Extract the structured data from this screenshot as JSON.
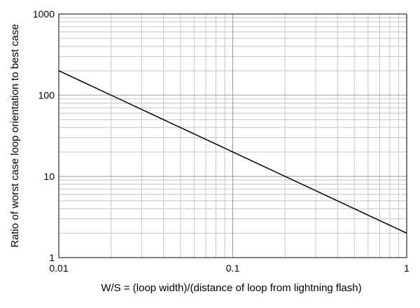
{
  "chart_data": {
    "type": "line",
    "title": "",
    "xlabel": "W/S = (loop width)/(distance of loop from lightning flash)",
    "ylabel": "Ratio of worst case loop orientation to best case",
    "xscale": "log",
    "yscale": "log",
    "xlim": [
      0.01,
      1
    ],
    "ylim": [
      1,
      1000
    ],
    "xticks": [
      0.01,
      0.1,
      1
    ],
    "xtick_labels": [
      "0.01",
      "0.1",
      "1"
    ],
    "yticks": [
      1,
      10,
      100,
      1000
    ],
    "ytick_labels": [
      "1",
      "10",
      "100",
      "1000"
    ],
    "grid": true,
    "legend": "none",
    "colors": {
      "line": "#000000",
      "grid_major": "#9a9a9a",
      "grid_minor": "#c4c4c4",
      "axes": "#000000"
    },
    "series": [
      {
        "x": [
          0.01,
          0.02,
          0.05,
          0.1,
          0.2,
          0.5,
          1
        ],
        "values": [
          200,
          100,
          40,
          20,
          10,
          4,
          2
        ]
      }
    ]
  }
}
